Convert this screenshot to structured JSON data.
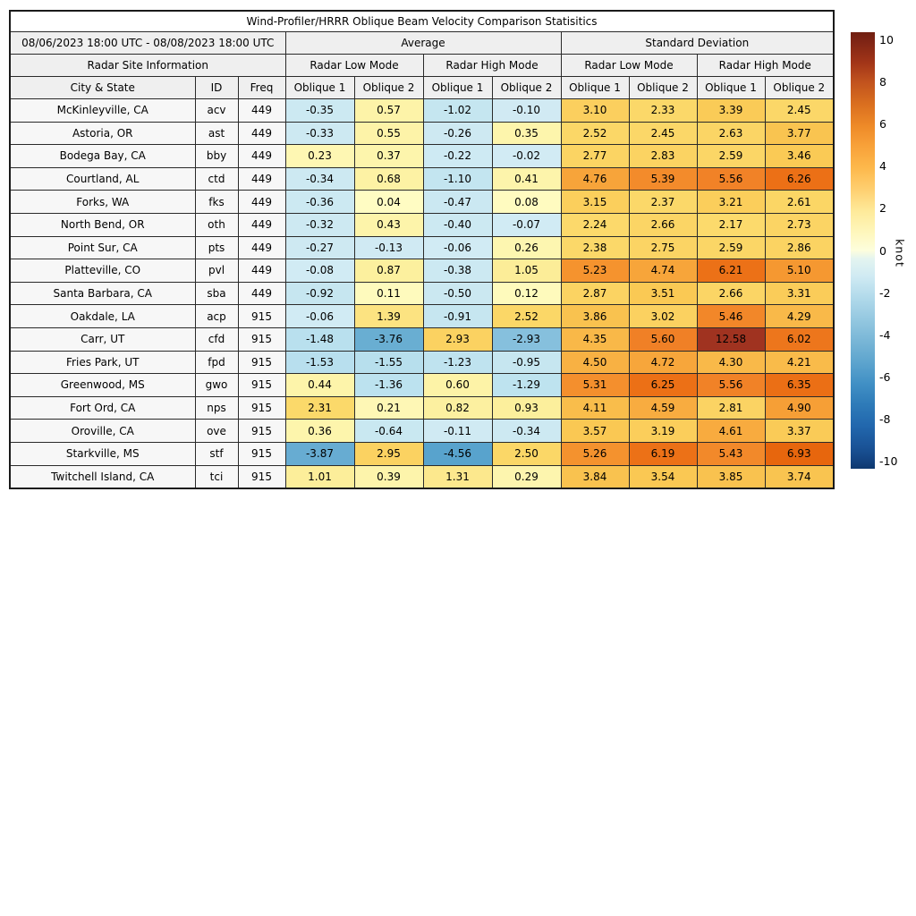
{
  "chart_data": {
    "type": "table",
    "title": "Wind-Profiler/HRRR Oblique Beam Velocity Comparison Statisitics",
    "period": "08/06/2023 18:00 UTC - 08/08/2023 18:00 UTC",
    "header": {
      "group_average": "Average",
      "group_std": "Standard Deviation",
      "site_info": "Radar Site Information",
      "mode_labels": [
        "Radar Low Mode",
        "Radar High Mode",
        "Radar Low Mode",
        "Radar High Mode"
      ],
      "city_col": "City & State",
      "id_col": "ID",
      "freq_col": "Freq",
      "oblique_labels": [
        "Oblique 1",
        "Oblique 2",
        "Oblique 1",
        "Oblique 2",
        "Oblique 1",
        "Oblique 2",
        "Oblique 1",
        "Oblique 2"
      ]
    },
    "rows": [
      {
        "city": "McKinleyville, CA",
        "id": "acv",
        "freq": "449",
        "values": [
          "-0.35",
          "0.57",
          "-1.02",
          "-0.10",
          "3.10",
          "2.33",
          "3.39",
          "2.45"
        ]
      },
      {
        "city": "Astoria, OR",
        "id": "ast",
        "freq": "449",
        "values": [
          "-0.33",
          "0.55",
          "-0.26",
          "0.35",
          "2.52",
          "2.45",
          "2.63",
          "3.77"
        ]
      },
      {
        "city": "Bodega Bay, CA",
        "id": "bby",
        "freq": "449",
        "values": [
          "0.23",
          "0.37",
          "-0.22",
          "-0.02",
          "2.77",
          "2.83",
          "2.59",
          "3.46"
        ]
      },
      {
        "city": "Courtland, AL",
        "id": "ctd",
        "freq": "449",
        "values": [
          "-0.34",
          "0.68",
          "-1.10",
          "0.41",
          "4.76",
          "5.39",
          "5.56",
          "6.26"
        ]
      },
      {
        "city": "Forks, WA",
        "id": "fks",
        "freq": "449",
        "values": [
          "-0.36",
          "0.04",
          "-0.47",
          "0.08",
          "3.15",
          "2.37",
          "3.21",
          "2.61"
        ]
      },
      {
        "city": "North Bend, OR",
        "id": "oth",
        "freq": "449",
        "values": [
          "-0.32",
          "0.43",
          "-0.40",
          "-0.07",
          "2.24",
          "2.66",
          "2.17",
          "2.73"
        ]
      },
      {
        "city": "Point Sur, CA",
        "id": "pts",
        "freq": "449",
        "values": [
          "-0.27",
          "-0.13",
          "-0.06",
          "0.26",
          "2.38",
          "2.75",
          "2.59",
          "2.86"
        ]
      },
      {
        "city": "Platteville, CO",
        "id": "pvl",
        "freq": "449",
        "values": [
          "-0.08",
          "0.87",
          "-0.38",
          "1.05",
          "5.23",
          "4.74",
          "6.21",
          "5.10"
        ]
      },
      {
        "city": "Santa Barbara, CA",
        "id": "sba",
        "freq": "449",
        "values": [
          "-0.92",
          "0.11",
          "-0.50",
          "0.12",
          "2.87",
          "3.51",
          "2.66",
          "3.31"
        ]
      },
      {
        "city": "Oakdale, LA",
        "id": "acp",
        "freq": "915",
        "values": [
          "-0.06",
          "1.39",
          "-0.91",
          "2.52",
          "3.86",
          "3.02",
          "5.46",
          "4.29"
        ]
      },
      {
        "city": "Carr, UT",
        "id": "cfd",
        "freq": "915",
        "values": [
          "-1.48",
          "-3.76",
          "2.93",
          "-2.93",
          "4.35",
          "5.60",
          "12.58",
          "6.02"
        ]
      },
      {
        "city": "Fries Park, UT",
        "id": "fpd",
        "freq": "915",
        "values": [
          "-1.53",
          "-1.55",
          "-1.23",
          "-0.95",
          "4.50",
          "4.72",
          "4.30",
          "4.21"
        ]
      },
      {
        "city": "Greenwood, MS",
        "id": "gwo",
        "freq": "915",
        "values": [
          "0.44",
          "-1.36",
          "0.60",
          "-1.29",
          "5.31",
          "6.25",
          "5.56",
          "6.35"
        ]
      },
      {
        "city": "Fort Ord, CA",
        "id": "nps",
        "freq": "915",
        "values": [
          "2.31",
          "0.21",
          "0.82",
          "0.93",
          "4.11",
          "4.59",
          "2.81",
          "4.90"
        ]
      },
      {
        "city": "Oroville, CA",
        "id": "ove",
        "freq": "915",
        "values": [
          "0.36",
          "-0.64",
          "-0.11",
          "-0.34",
          "3.57",
          "3.19",
          "4.61",
          "3.37"
        ]
      },
      {
        "city": "Starkville, MS",
        "id": "stf",
        "freq": "915",
        "values": [
          "-3.87",
          "2.95",
          "-4.56",
          "2.50",
          "5.26",
          "6.19",
          "5.43",
          "6.93"
        ]
      },
      {
        "city": "Twitchell Island, CA",
        "id": "tci",
        "freq": "915",
        "values": [
          "1.01",
          "0.39",
          "1.31",
          "0.29",
          "3.84",
          "3.54",
          "3.85",
          "3.74"
        ]
      }
    ],
    "value_range": [
      -10,
      10
    ],
    "colormap_anchors": [
      [
        -10,
        "#12417e"
      ],
      [
        -5,
        "#4f9cc9"
      ],
      [
        -4.5,
        "#59a4cd"
      ],
      [
        -3.8,
        "#68add2"
      ],
      [
        -2.9,
        "#87c1dd"
      ],
      [
        -2.0,
        "#a6d4e7"
      ],
      [
        -1.5,
        "#b9e0ee"
      ],
      [
        -1.0,
        "#c5e6f0"
      ],
      [
        -0.3,
        "#cde9f2"
      ],
      [
        -0.02,
        "#d2ebf4"
      ],
      [
        0.02,
        "#fffcc5"
      ],
      [
        0.3,
        "#fdf5ad"
      ],
      [
        0.6,
        "#fdf3a7"
      ],
      [
        1.0,
        "#fcee9a"
      ],
      [
        1.3,
        "#fce98e"
      ],
      [
        1.45,
        "#fcdf78"
      ],
      [
        2.0,
        "#fcdb6e"
      ],
      [
        2.5,
        "#fbd767"
      ],
      [
        3.0,
        "#fbd160"
      ],
      [
        3.5,
        "#fac954"
      ],
      [
        3.9,
        "#f9c14e"
      ],
      [
        4.35,
        "#f9b848"
      ],
      [
        4.75,
        "#f7a43a"
      ],
      [
        5.2,
        "#f5952f"
      ],
      [
        5.6,
        "#f08026"
      ],
      [
        6.2,
        "#ec7117"
      ],
      [
        7.0,
        "#e6650c"
      ],
      [
        12.6,
        "#a03320"
      ]
    ],
    "colorbar": {
      "unit": "knot",
      "ticks": [
        "10",
        "8",
        "6",
        "4",
        "2",
        "0",
        "-2",
        "-4",
        "-6",
        "-8",
        "-10"
      ],
      "tick_values": [
        10,
        8,
        6,
        4,
        2,
        0,
        -2,
        -4,
        -6,
        -8,
        -10
      ],
      "gradient": [
        [
          0,
          "#701f10"
        ],
        [
          2,
          "#7e2415"
        ],
        [
          7,
          "#a23518"
        ],
        [
          11.5,
          "#c2531e"
        ],
        [
          16.5,
          "#da6f1f"
        ],
        [
          21.5,
          "#ee8a28"
        ],
        [
          26,
          "#f8a139"
        ],
        [
          31,
          "#fdb84b"
        ],
        [
          36,
          "#fecf70"
        ],
        [
          41,
          "#feea9a"
        ],
        [
          46,
          "#fef7bd"
        ],
        [
          50,
          "#fdfedd"
        ],
        [
          52,
          "#e3f4f0"
        ],
        [
          56,
          "#cfeaf3"
        ],
        [
          61,
          "#b0d9ea"
        ],
        [
          65.5,
          "#96c9e1"
        ],
        [
          70.5,
          "#7ab7d7"
        ],
        [
          75.5,
          "#5ea5ce"
        ],
        [
          80.5,
          "#4190c5"
        ],
        [
          85,
          "#2f7cb9"
        ],
        [
          90,
          "#2268ae"
        ],
        [
          95,
          "#1a5397"
        ],
        [
          98.5,
          "#12417e"
        ],
        [
          100,
          "#0e386e"
        ]
      ]
    }
  }
}
